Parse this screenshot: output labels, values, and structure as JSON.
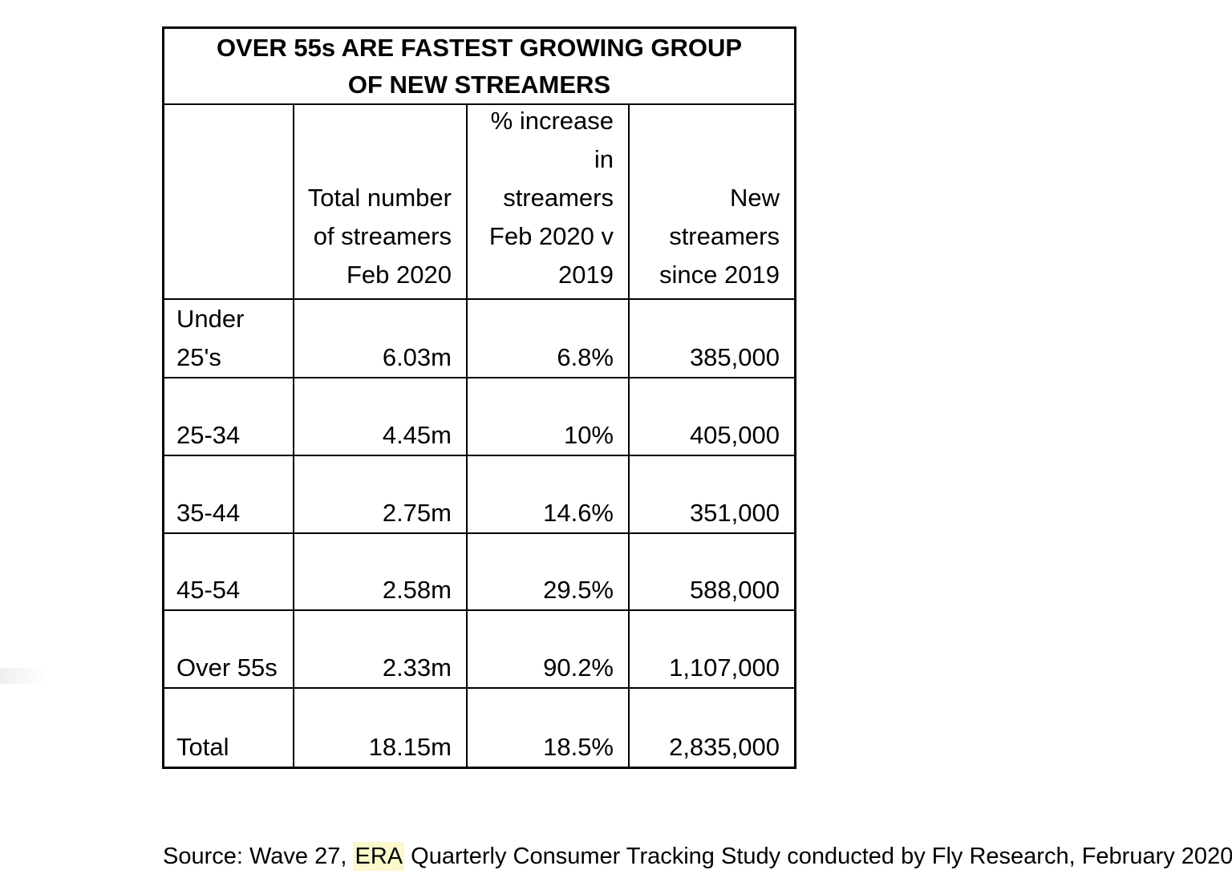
{
  "table": {
    "title": "OVER 55s ARE FASTEST GROWING GROUP\nOF NEW STREAMERS",
    "headers": {
      "group": "",
      "total": "Total number\nof streamers\nFeb 2020",
      "increase": "% increase\nin\nstreamers\nFeb 2020 v\n2019",
      "new": "New\nstreamers\nsince 2019"
    },
    "rows": [
      {
        "label": "Under\n25's",
        "total": "6.03m",
        "increase": "6.8%",
        "new": "385,000"
      },
      {
        "label": "25-34",
        "total": "4.45m",
        "increase": "10%",
        "new": "405,000"
      },
      {
        "label": "35-44",
        "total": "2.75m",
        "increase": "14.6%",
        "new": "351,000"
      },
      {
        "label": "45-54",
        "total": "2.58m",
        "increase": "29.5%",
        "new": "588,000"
      },
      {
        "label": "Over 55s",
        "total": "2.33m",
        "increase": "90.2%",
        "new": "1,107,000"
      },
      {
        "label": "Total",
        "total": "18.15m",
        "increase": "18.5%",
        "new": "2,835,000"
      }
    ]
  },
  "source": {
    "prefix": "Source: Wave 27, ",
    "highlight": "ERA",
    "suffix": " Quarterly Consumer Tracking Study conducted by Fly Research, February 2020",
    "highlight_color": "#fbf8cb"
  },
  "colors": {
    "border": "#000000",
    "text": "#000000",
    "background": "#ffffff"
  },
  "chart_data": {
    "type": "table",
    "title": "OVER 55s ARE FASTEST GROWING GROUP OF NEW STREAMERS",
    "columns": [
      "",
      "Total number of streamers Feb 2020",
      "% increase in streamers Feb 2020 v 2019",
      "New streamers since 2019"
    ],
    "rows": [
      [
        "Under 25's",
        "6.03m",
        "6.8%",
        "385,000"
      ],
      [
        "25-34",
        "4.45m",
        "10%",
        "405,000"
      ],
      [
        "35-44",
        "2.75m",
        "14.6%",
        "351,000"
      ],
      [
        "45-54",
        "2.58m",
        "29.5%",
        "588,000"
      ],
      [
        "Over 55s",
        "2.33m",
        "90.2%",
        "1,107,000"
      ],
      [
        "Total",
        "18.15m",
        "18.5%",
        "2,835,000"
      ]
    ],
    "totals_row": [
      "Total",
      "18.15m",
      "18.5%",
      "2,835,000"
    ],
    "source": "Source: Wave 27, ERA Quarterly Consumer Tracking Study conducted by Fly Research, February 2020"
  }
}
